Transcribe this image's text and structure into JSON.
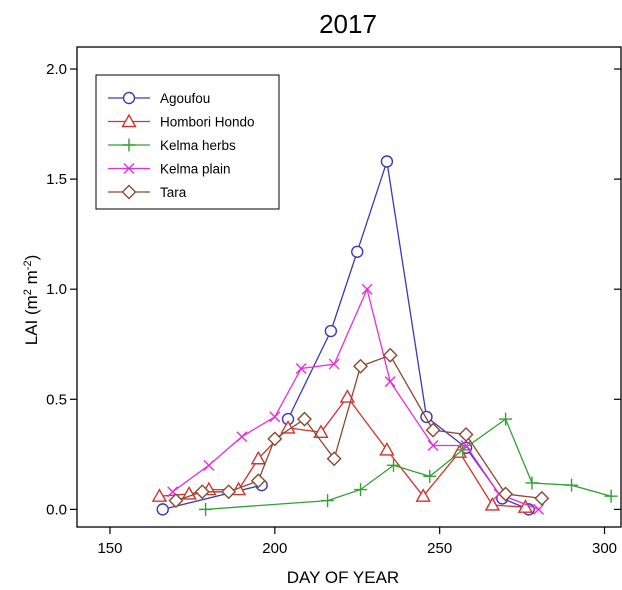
{
  "chart_data": {
    "type": "line",
    "title": "2017",
    "xlabel": "DAY OF YEAR",
    "ylabel_main": "LAI (m",
    "ylabel_sup1": "2",
    "ylabel_mid": " m",
    "ylabel_sup2": "-2",
    "ylabel_end": ")",
    "xlim": [
      140,
      305
    ],
    "ylim": [
      -0.08,
      2.1
    ],
    "xticks": [
      150,
      200,
      250,
      300
    ],
    "yticks": [
      0.0,
      0.5,
      1.0,
      1.5,
      2.0
    ],
    "xtick_labels": [
      "150",
      "200",
      "250",
      "300"
    ],
    "ytick_labels": [
      "0.0",
      "0.5",
      "1.0",
      "1.5",
      "2.0"
    ],
    "grid": false,
    "legend_position": "top-left",
    "series": [
      {
        "name": "Agoufou",
        "color": "#3a3ab5",
        "marker": "circle",
        "segments": [
          [
            [
              166,
              0.0
            ],
            [
              196,
              0.11
            ]
          ],
          [
            [
              204,
              0.41
            ],
            [
              217,
              0.81
            ],
            [
              225,
              1.17
            ],
            [
              234,
              1.58
            ],
            [
              246,
              0.42
            ],
            [
              258,
              0.28
            ],
            [
              269,
              0.05
            ],
            [
              277,
              0.0
            ]
          ]
        ]
      },
      {
        "name": "Hombori Hondo",
        "color": "#d4322b",
        "marker": "triangle",
        "segments": [
          [
            [
              165,
              0.06
            ],
            [
              174,
              0.07
            ],
            [
              180,
              0.09
            ],
            [
              189,
              0.09
            ],
            [
              195,
              0.23
            ],
            [
              204,
              0.37
            ],
            [
              214,
              0.35
            ],
            [
              222,
              0.51
            ],
            [
              234,
              0.27
            ],
            [
              245,
              0.06
            ],
            [
              256,
              0.26
            ],
            [
              266,
              0.02
            ],
            [
              276,
              0.01
            ]
          ]
        ]
      },
      {
        "name": "Kelma herbs",
        "color": "#2ea32e",
        "marker": "plus",
        "segments": [
          [
            [
              179,
              0.0
            ],
            [
              216,
              0.04
            ],
            [
              226,
              0.09
            ],
            [
              236,
              0.2
            ],
            [
              247,
              0.15
            ],
            [
              257,
              0.27
            ],
            [
              270,
              0.41
            ],
            [
              278,
              0.12
            ],
            [
              290,
              0.11
            ],
            [
              302,
              0.06
            ]
          ]
        ]
      },
      {
        "name": "Kelma plain",
        "color": "#e62ee0",
        "marker": "x",
        "segments": [
          [
            [
              169,
              0.08
            ],
            [
              180,
              0.2
            ],
            [
              190,
              0.33
            ],
            [
              200,
              0.42
            ],
            [
              208,
              0.64
            ],
            [
              218,
              0.66
            ],
            [
              228,
              1.0
            ],
            [
              235,
              0.58
            ],
            [
              248,
              0.29
            ],
            [
              258,
              0.29
            ],
            [
              268,
              0.07
            ],
            [
              280,
              0.0
            ]
          ]
        ]
      },
      {
        "name": "Tara",
        "color": "#8b4a30",
        "marker": "diamond",
        "segments": [
          [
            [
              170,
              0.04
            ],
            [
              178,
              0.08
            ],
            [
              186,
              0.08
            ],
            [
              195,
              0.13
            ],
            [
              200,
              0.32
            ],
            [
              209,
              0.41
            ],
            [
              218,
              0.23
            ],
            [
              226,
              0.65
            ],
            [
              235,
              0.7
            ],
            [
              248,
              0.36
            ],
            [
              258,
              0.34
            ],
            [
              270,
              0.07
            ],
            [
              281,
              0.05
            ]
          ]
        ]
      }
    ]
  }
}
